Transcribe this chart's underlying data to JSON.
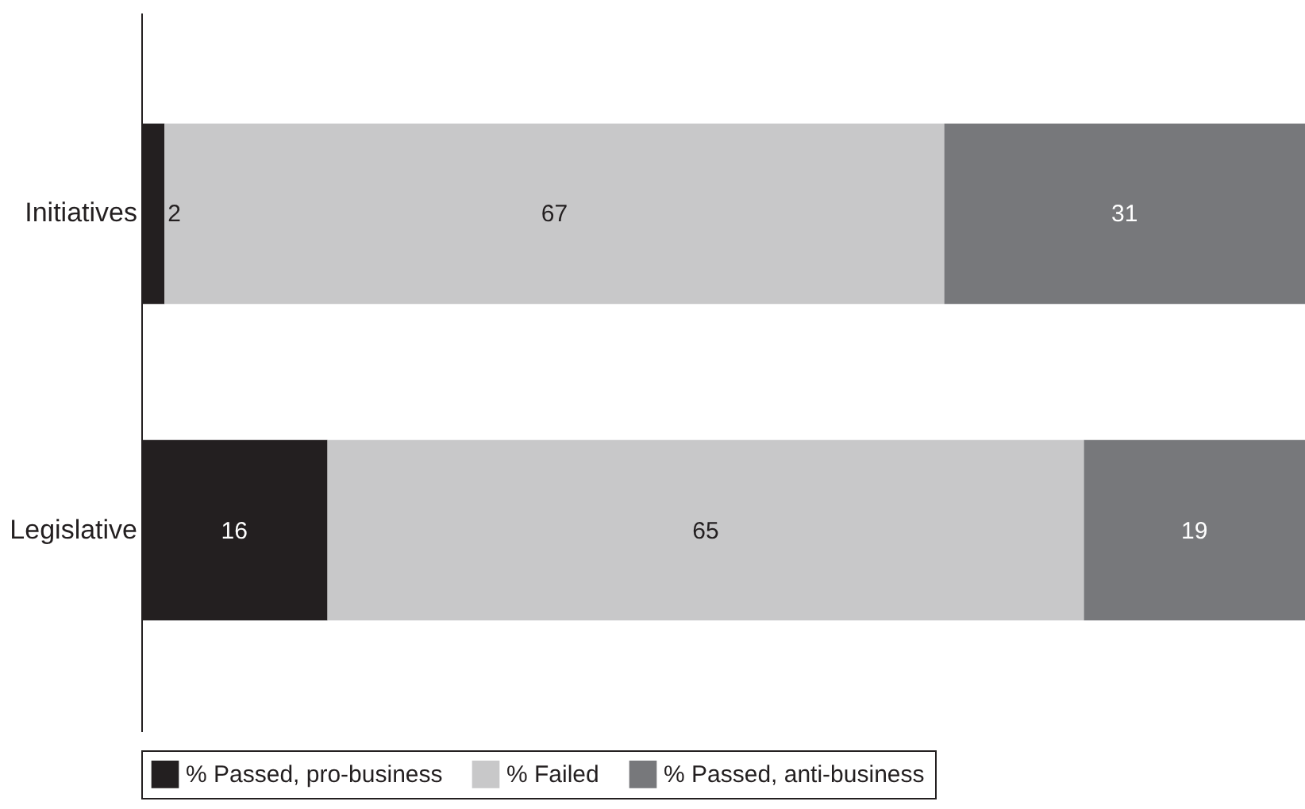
{
  "chart_data": {
    "type": "bar",
    "orientation": "horizontal",
    "stacked": true,
    "categories": [
      "Initiatives",
      "Legislative"
    ],
    "series": [
      {
        "name": "% Passed, pro-business",
        "color": "#231f20",
        "values": [
          2,
          16
        ]
      },
      {
        "name": "% Failed",
        "color": "#c8c8c9",
        "values": [
          67,
          65
        ]
      },
      {
        "name": "% Passed, anti-business",
        "color": "#77787b",
        "values": [
          31,
          19
        ]
      }
    ],
    "data_labels": true,
    "legend": "bottom"
  }
}
